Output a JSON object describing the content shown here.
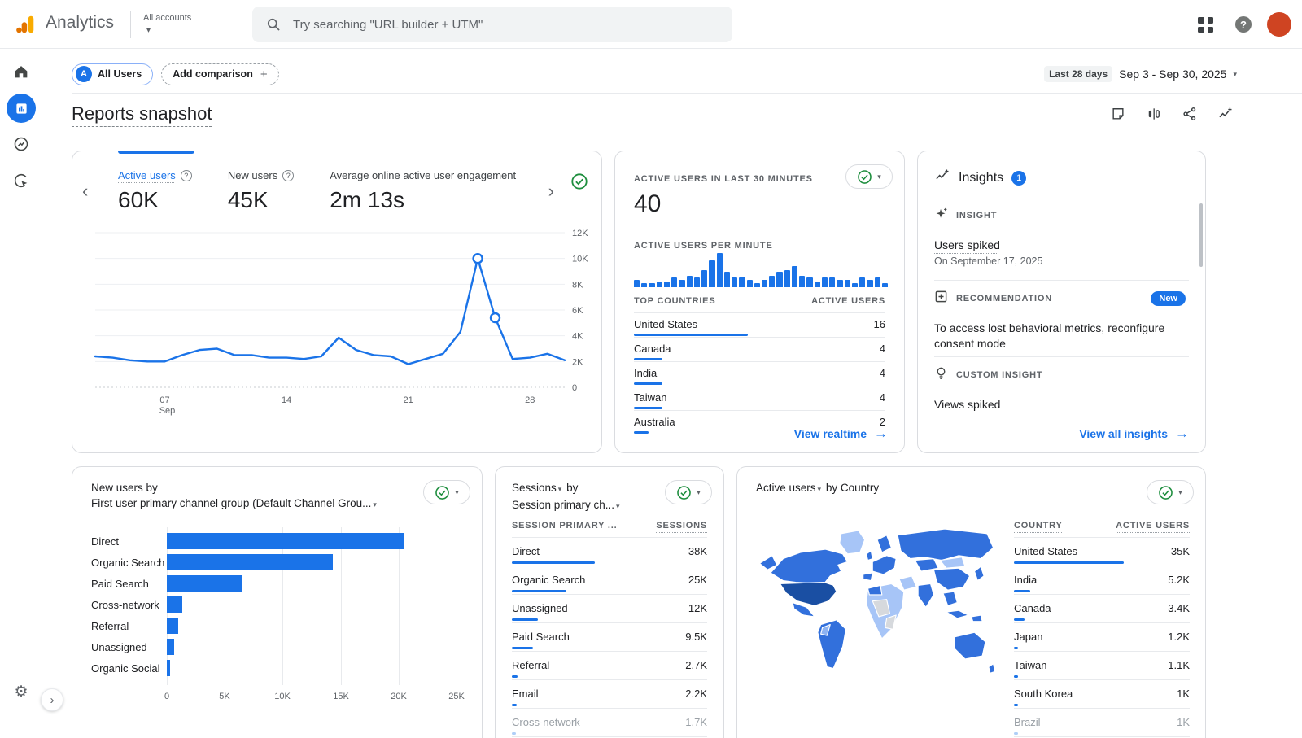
{
  "glyphs": {
    "caret_down": "▾",
    "chevron_left": "‹",
    "chevron_right": "›",
    "arrow_right": "→",
    "plus": "+",
    "question_mark": "?",
    "gear": "⚙",
    "expand": "›"
  },
  "header": {
    "app_name": "Analytics",
    "accounts_label": "All accounts",
    "search_placeholder": "Try searching \"URL builder + UTM\""
  },
  "toolbar": {
    "comparison_letter": "A",
    "all_users_label": "All Users",
    "add_comparison_label": "Add comparison",
    "date_preset": "Last 28 days",
    "date_range": "Sep 3 - Sep 30, 2025"
  },
  "page": {
    "title": "Reports snapshot"
  },
  "cards": {
    "overview": {
      "metrics": [
        {
          "label": "Active users",
          "value": "60K"
        },
        {
          "label": "New users",
          "value": "45K"
        },
        {
          "label": "Average online active user engagement",
          "value": "2m 13s"
        }
      ],
      "chart": {
        "type": "line",
        "metric": "Active users",
        "ymax_k": 12,
        "values_k": [
          2.4,
          2.3,
          2.1,
          2.0,
          2.0,
          2.5,
          2.9,
          3.0,
          2.5,
          2.5,
          2.3,
          2.3,
          2.2,
          2.4,
          3.85,
          2.9,
          2.5,
          2.4,
          1.8,
          2.2,
          2.6,
          4.3,
          10.0,
          5.4,
          2.2,
          2.3,
          2.6,
          2.1
        ],
        "marker_indices": [
          22,
          23
        ],
        "y_ticks": [
          {
            "v": 12,
            "label": "12K"
          },
          {
            "v": 10,
            "label": "10K"
          },
          {
            "v": 8,
            "label": "8K"
          },
          {
            "v": 6,
            "label": "6K"
          },
          {
            "v": 4,
            "label": "4K"
          },
          {
            "v": 2,
            "label": "2K"
          },
          {
            "v": 0,
            "label": "0"
          }
        ],
        "x_ticks": [
          {
            "i": 4,
            "label": "07",
            "sub": "Sep"
          },
          {
            "i": 11,
            "label": "14"
          },
          {
            "i": 18,
            "label": "21"
          },
          {
            "i": 25,
            "label": "28"
          }
        ]
      }
    },
    "realtime": {
      "title": "ACTIVE USERS IN LAST 30 MINUTES",
      "value": "40",
      "per_minute_label": "ACTIVE USERS PER MINUTE",
      "minute_bars": [
        2,
        1,
        1,
        1.5,
        1.5,
        2.5,
        2,
        3,
        2.5,
        4.5,
        7,
        9,
        4,
        2.5,
        2.5,
        2,
        1,
        2,
        3,
        4,
        4.5,
        5.5,
        3,
        2.5,
        1.5,
        2.5,
        2.5,
        2,
        2,
        1,
        2.5,
        2,
        2.5,
        1
      ],
      "countries": {
        "col_label": "TOP COUNTRIES",
        "col_value": "ACTIVE USERS",
        "bar_max": 140,
        "rows": [
          {
            "label": "United States",
            "display": "16",
            "value": 16
          },
          {
            "label": "Canada",
            "display": "4",
            "value": 4
          },
          {
            "label": "India",
            "display": "4",
            "value": 4
          },
          {
            "label": "Taiwan",
            "display": "4",
            "value": 4
          },
          {
            "label": "Australia",
            "display": "2",
            "value": 2
          }
        ]
      },
      "link_label": "View realtime"
    },
    "insights": {
      "title": "Insights",
      "count": "1",
      "insight": {
        "kind": "INSIGHT",
        "title": "Users spiked",
        "subtitle": "On September 17, 2025"
      },
      "recommendation": {
        "kind": "RECOMMENDATION",
        "badge": "New",
        "text": "To access lost behavioral metrics, reconfigure consent mode"
      },
      "custom": {
        "kind": "CUSTOM INSIGHT",
        "title": "Views spiked"
      },
      "link_label": "View all insights"
    },
    "new_users": {
      "metric_label": "New users",
      "by_label": " by",
      "dimension_label": "First user primary channel group (Default Channel Grou...",
      "chart_data": {
        "type": "bar",
        "orientation": "horizontal",
        "categories": [
          "Direct",
          "Organic Search",
          "Paid Search",
          "Cross-network",
          "Referral",
          "Unassigned",
          "Organic Social"
        ],
        "values": [
          20500,
          14300,
          6500,
          1300,
          1000,
          600,
          300
        ],
        "x_ticks": [
          "0",
          "5K",
          "10K",
          "15K",
          "20K",
          "25K"
        ],
        "xmax": 25000
      }
    },
    "sessions": {
      "metric_label": "Sessions",
      "by_label": " by",
      "dimension_label": "Session primary ch...",
      "table": {
        "col_label": "SESSION PRIMARY ...",
        "col_value": "SESSIONS",
        "bar_max": 102,
        "fade_from": 6,
        "rows": [
          {
            "label": "Direct",
            "display": "38K",
            "value": 38
          },
          {
            "label": "Organic Search",
            "display": "25K",
            "value": 25
          },
          {
            "label": "Unassigned",
            "display": "12K",
            "value": 12
          },
          {
            "label": "Paid Search",
            "display": "9.5K",
            "value": 9.5
          },
          {
            "label": "Referral",
            "display": "2.7K",
            "value": 2.7
          },
          {
            "label": "Email",
            "display": "2.2K",
            "value": 2.2
          },
          {
            "label": "Cross-network",
            "display": "1.7K",
            "value": 1.7
          }
        ]
      }
    },
    "countries": {
      "metric_label": "Active users",
      "by_label": " by ",
      "dimension_label": "Country",
      "table": {
        "col_label": "COUNTRY",
        "col_value": "ACTIVE USERS",
        "bar_max": 135,
        "fade_from": 6,
        "rows": [
          {
            "label": "United States",
            "display": "35K",
            "value": 35
          },
          {
            "label": "India",
            "display": "5.2K",
            "value": 5.2
          },
          {
            "label": "Canada",
            "display": "3.4K",
            "value": 3.4
          },
          {
            "label": "Japan",
            "display": "1.2K",
            "value": 1.2
          },
          {
            "label": "Taiwan",
            "display": "1.1K",
            "value": 1.1
          },
          {
            "label": "South Korea",
            "display": "1K",
            "value": 1
          },
          {
            "label": "Brazil",
            "display": "1K",
            "value": 1
          }
        ]
      }
    }
  }
}
